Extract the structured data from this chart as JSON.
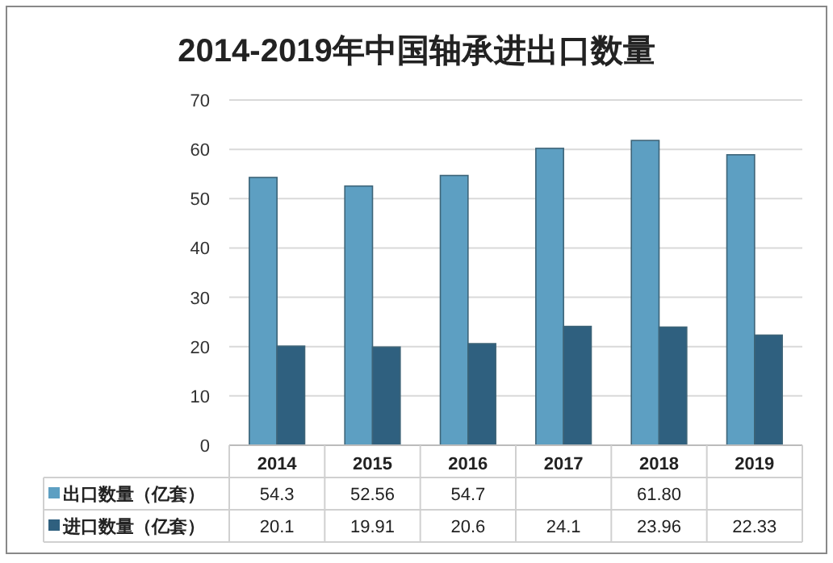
{
  "chart_data": {
    "type": "bar",
    "title": "2014-2019年中国轴承进出口数量",
    "categories": [
      "2014",
      "2015",
      "2016",
      "2017",
      "2018",
      "2019"
    ],
    "series": [
      {
        "name": "出口数量（亿套）",
        "color": "#5d9fc2",
        "values": [
          54.3,
          52.56,
          54.7,
          60.2,
          61.8,
          58.9
        ],
        "value_labels": [
          "54.3",
          "52.56",
          "54.7",
          null,
          "61.80",
          null
        ]
      },
      {
        "name": "进口数量（亿套）",
        "color": "#2f607f",
        "values": [
          20.1,
          19.91,
          20.6,
          24.1,
          23.96,
          22.33
        ],
        "value_labels": [
          "20.1",
          "19.91",
          "20.6",
          "24.1",
          "23.96",
          "22.33"
        ]
      }
    ],
    "ylim": [
      0,
      70
    ],
    "yticks": [
      0,
      10,
      20,
      30,
      40,
      50,
      60,
      70
    ],
    "grid": "y",
    "legend": "bottom"
  }
}
